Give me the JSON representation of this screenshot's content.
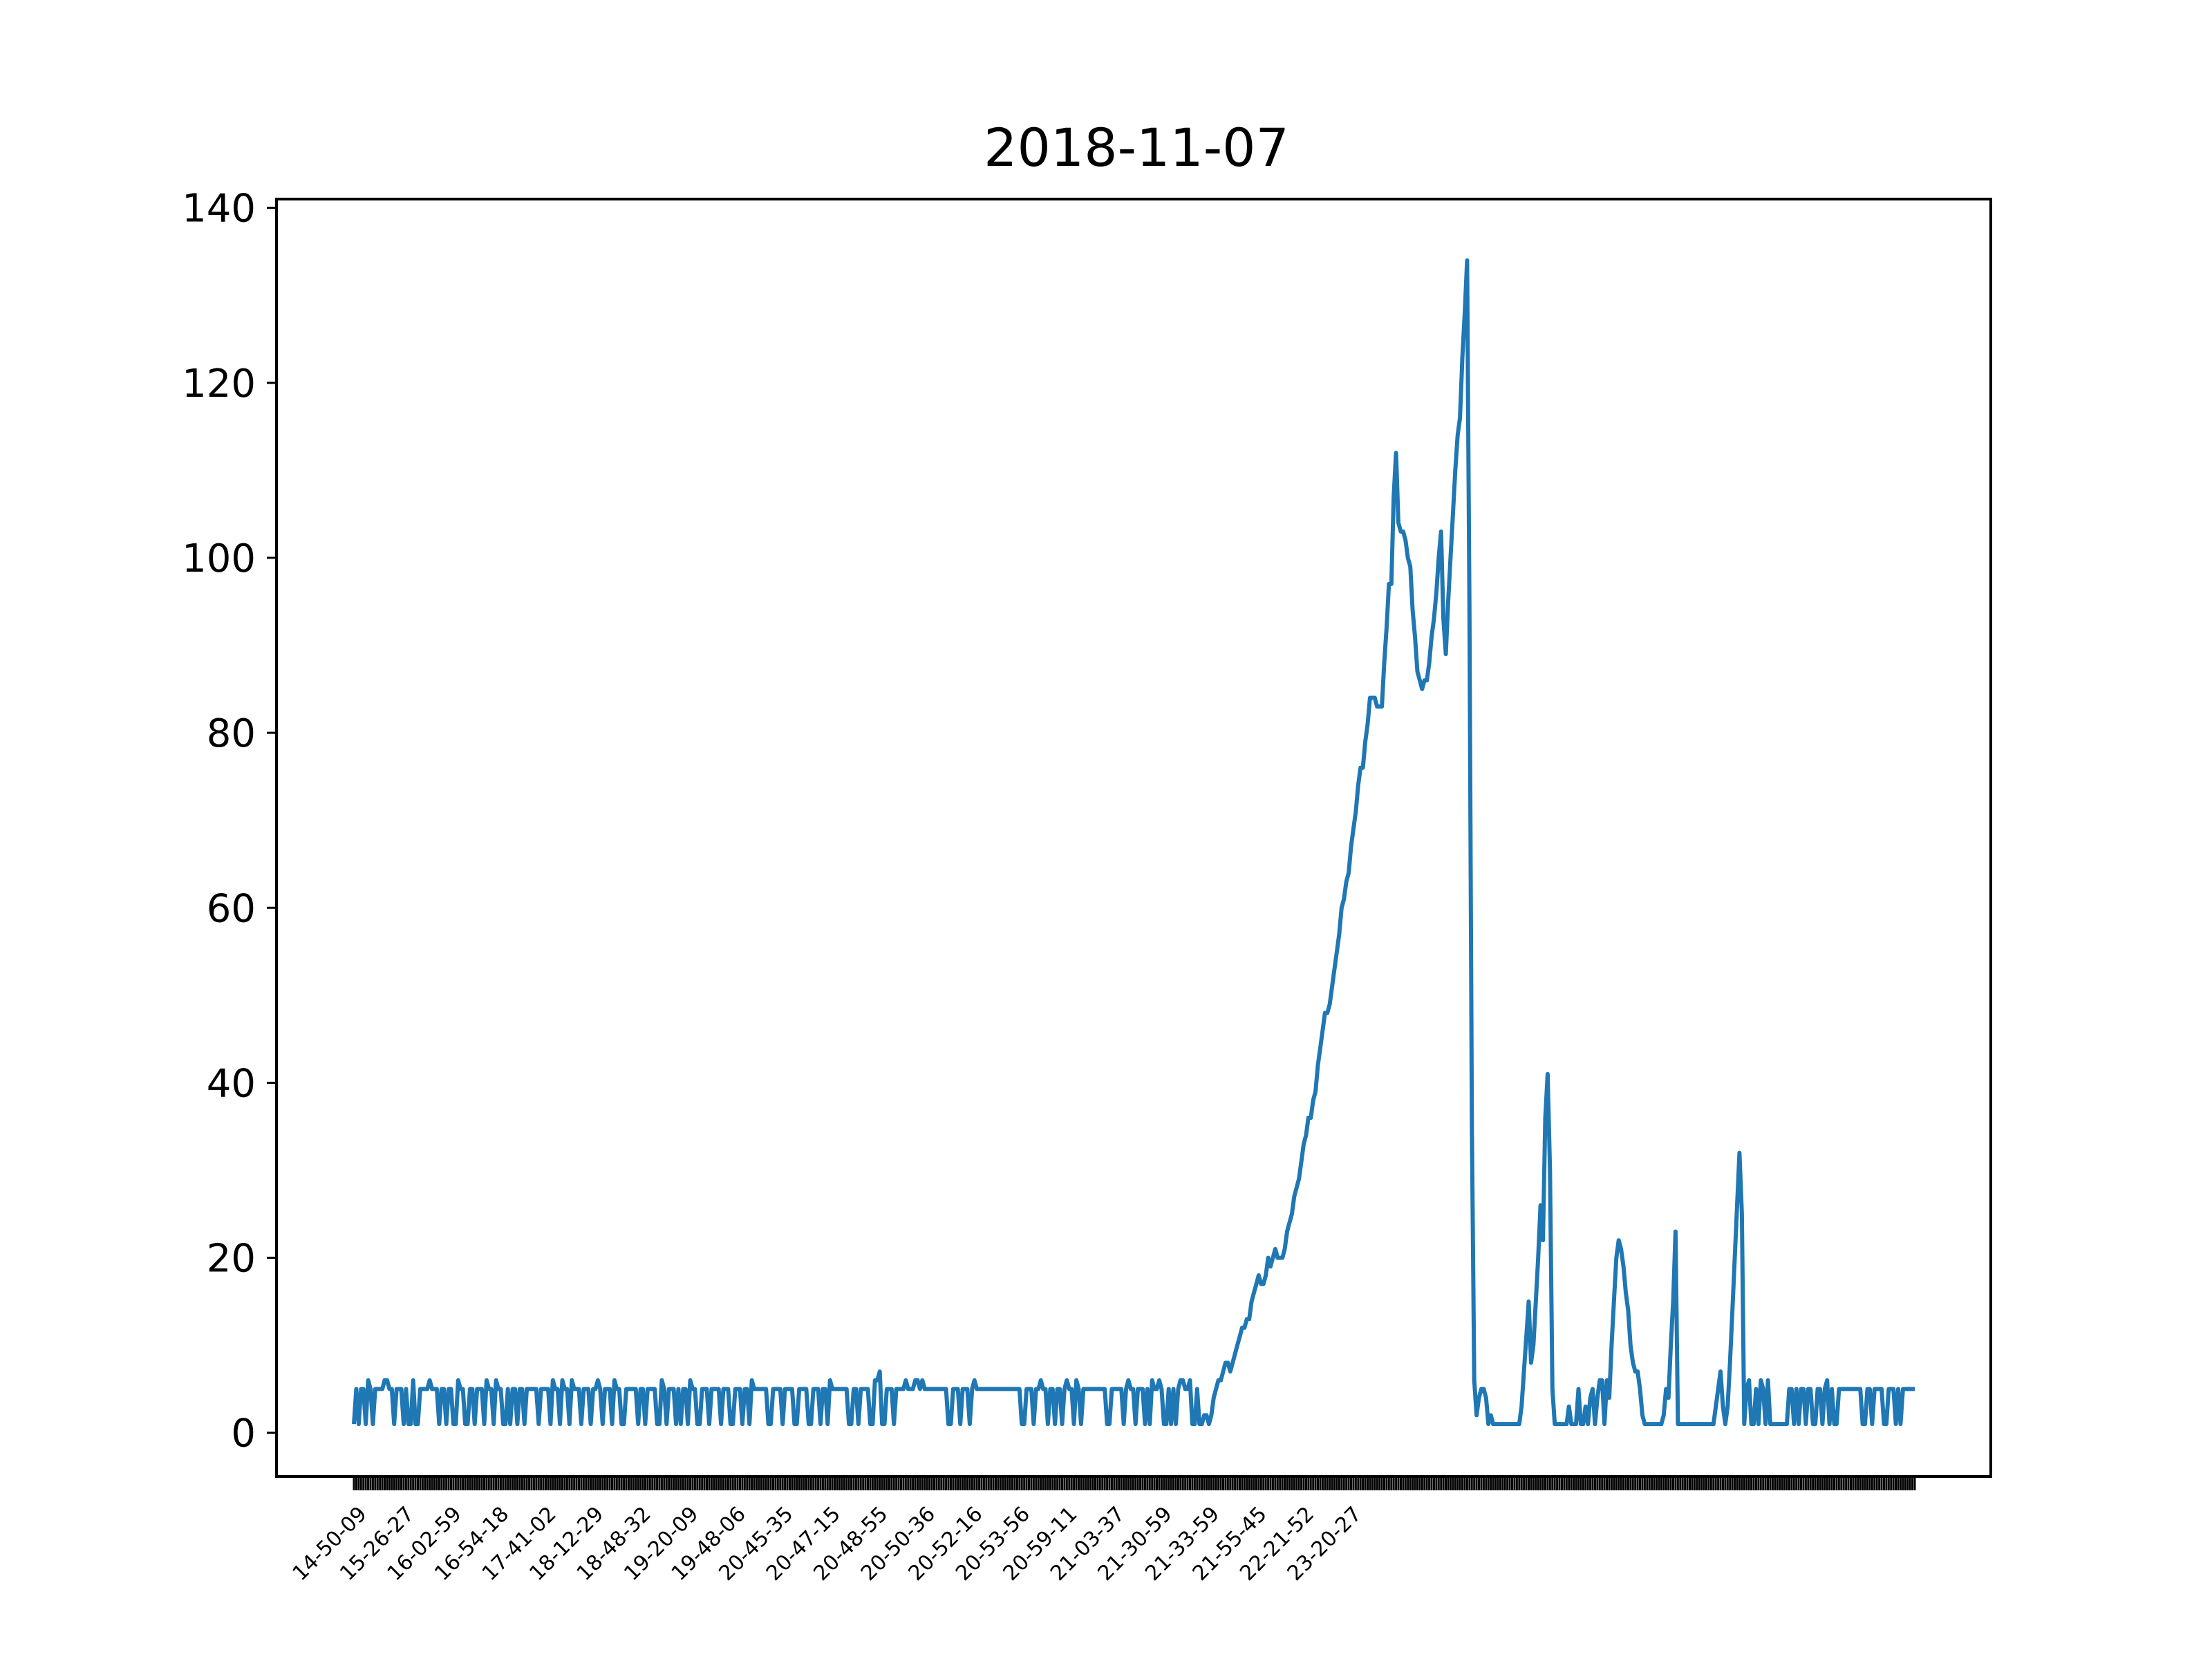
{
  "chart_data": {
    "type": "line",
    "title": "2018-11-07",
    "xlabel": "",
    "ylabel": "",
    "ylim": [
      -5,
      141
    ],
    "yticks": [
      0,
      20,
      40,
      60,
      80,
      100,
      120,
      140
    ],
    "x_tick_labels": [
      "14-50-09",
      "15-26-27",
      "16-02-59",
      "16-54-18",
      "17-41-02",
      "18-12-29",
      "18-48-32",
      "19-20-09",
      "19-48-06",
      "20-45-35",
      "20-47-15",
      "20-48-55",
      "20-50-36",
      "20-52-16",
      "20-53-56",
      "20-59-11",
      "21-03-37",
      "21-30-59",
      "21-33-59",
      "21-55-45",
      "22-21-52",
      "23-20-27"
    ],
    "x_tick_every": 20,
    "grid": false,
    "legend": "none",
    "series": [
      {
        "color": "#1f77b4",
        "values": [
          1,
          5,
          1,
          5,
          5,
          1,
          6,
          5,
          1,
          5,
          5,
          5,
          5,
          6,
          6,
          5,
          5,
          1,
          5,
          5,
          5,
          1,
          5,
          1,
          1,
          6,
          1,
          1,
          5,
          5,
          5,
          5,
          6,
          5,
          5,
          5,
          1,
          5,
          5,
          1,
          5,
          5,
          1,
          1,
          6,
          5,
          5,
          1,
          1,
          5,
          5,
          1,
          5,
          5,
          5,
          1,
          6,
          5,
          5,
          1,
          6,
          5,
          5,
          1,
          1,
          5,
          1,
          5,
          5,
          1,
          5,
          5,
          1,
          5,
          5,
          5,
          5,
          5,
          1,
          5,
          5,
          5,
          5,
          1,
          6,
          5,
          5,
          1,
          6,
          5,
          5,
          1,
          6,
          5,
          5,
          5,
          1,
          5,
          5,
          5,
          1,
          5,
          5,
          6,
          5,
          1,
          5,
          5,
          5,
          1,
          6,
          5,
          5,
          1,
          1,
          5,
          5,
          5,
          5,
          5,
          1,
          5,
          5,
          1,
          5,
          5,
          5,
          5,
          1,
          1,
          6,
          5,
          1,
          5,
          5,
          5,
          1,
          5,
          1,
          5,
          5,
          1,
          6,
          5,
          5,
          1,
          1,
          5,
          5,
          5,
          1,
          5,
          5,
          5,
          5,
          1,
          5,
          5,
          5,
          1,
          1,
          5,
          5,
          5,
          1,
          5,
          5,
          1,
          6,
          5,
          5,
          5,
          5,
          5,
          5,
          1,
          1,
          5,
          5,
          5,
          5,
          1,
          5,
          5,
          5,
          5,
          1,
          1,
          5,
          5,
          5,
          5,
          1,
          1,
          5,
          5,
          5,
          1,
          5,
          5,
          1,
          6,
          5,
          5,
          5,
          5,
          5,
          5,
          5,
          1,
          1,
          5,
          5,
          1,
          5,
          5,
          5,
          5,
          1,
          1,
          6,
          6,
          7,
          1,
          1,
          5,
          5,
          5,
          1,
          5,
          5,
          5,
          5,
          6,
          5,
          5,
          5,
          6,
          6,
          5,
          6,
          5,
          5,
          5,
          5,
          5,
          5,
          5,
          5,
          5,
          5,
          1,
          1,
          5,
          5,
          5,
          1,
          5,
          5,
          5,
          1,
          5,
          6,
          5,
          5,
          5,
          5,
          5,
          5,
          5,
          5,
          5,
          5,
          5,
          5,
          5,
          5,
          5,
          5,
          5,
          5,
          5,
          1,
          1,
          5,
          5,
          5,
          1,
          5,
          5,
          6,
          5,
          5,
          1,
          5,
          5,
          1,
          5,
          5,
          1,
          5,
          6,
          5,
          5,
          1,
          6,
          5,
          1,
          5,
          5,
          5,
          5,
          5,
          5,
          5,
          5,
          5,
          5,
          1,
          1,
          5,
          5,
          5,
          5,
          5,
          1,
          5,
          6,
          5,
          5,
          1,
          5,
          5,
          5,
          1,
          5,
          1,
          6,
          5,
          5,
          6,
          5,
          1,
          1,
          5,
          1,
          5,
          1,
          5,
          6,
          6,
          5,
          5,
          6,
          1,
          1,
          5,
          1,
          1,
          2,
          2,
          1,
          2,
          4,
          5,
          6,
          6,
          7,
          8,
          8,
          7,
          8,
          9,
          10,
          11,
          12,
          12,
          13,
          13,
          15,
          16,
          17,
          18,
          17,
          17,
          18,
          20,
          19,
          20,
          21,
          20,
          20,
          20,
          21,
          23,
          24,
          25,
          27,
          28,
          29,
          31,
          33,
          34,
          36,
          36,
          38,
          39,
          42,
          44,
          46,
          48,
          48,
          49,
          51,
          53,
          55,
          57,
          60,
          61,
          63,
          64,
          67,
          69,
          71,
          74,
          76,
          76,
          79,
          81,
          84,
          84,
          84,
          83,
          83,
          83,
          88,
          92,
          97,
          97,
          107,
          112,
          104,
          103,
          103,
          102,
          100,
          99,
          94,
          91,
          87,
          86,
          85,
          86,
          86,
          88,
          91,
          93,
          96,
          100,
          103,
          93,
          89,
          95,
          100,
          105,
          110,
          114,
          116,
          123,
          128,
          134,
          94,
          35,
          6,
          2,
          4,
          5,
          5,
          4,
          1,
          2,
          1,
          1,
          1,
          1,
          1,
          1,
          1,
          1,
          1,
          1,
          1,
          1,
          3,
          7,
          11,
          15,
          8,
          10,
          15,
          20,
          26,
          22,
          36,
          41,
          30,
          5,
          1,
          1,
          1,
          1,
          1,
          1,
          3,
          1,
          1,
          1,
          5,
          1,
          1,
          3,
          1,
          4,
          5,
          1,
          4,
          6,
          6,
          1,
          6,
          4,
          10,
          15,
          20,
          22,
          21,
          19,
          16,
          14,
          10,
          8,
          7,
          7,
          5,
          2,
          1,
          1,
          1,
          1,
          1,
          1,
          1,
          1,
          2,
          5,
          4,
          10,
          15,
          23,
          1,
          1,
          1,
          1,
          1,
          1,
          1,
          1,
          1,
          1,
          1,
          1,
          1,
          1,
          1,
          1,
          3,
          5,
          7,
          3,
          1,
          3,
          8,
          14,
          20,
          26,
          32,
          25,
          1,
          5,
          6,
          1,
          1,
          5,
          1,
          6,
          5,
          1,
          6,
          1,
          1,
          1,
          1,
          1,
          1,
          1,
          1,
          5,
          5,
          1,
          5,
          1,
          5,
          5,
          1,
          5,
          5,
          1,
          1,
          5,
          5,
          1,
          5,
          6,
          1,
          5,
          1,
          1,
          5,
          5,
          5,
          5,
          5,
          5,
          5,
          5,
          5,
          5,
          1,
          1,
          5,
          5,
          1,
          5,
          5,
          5,
          5,
          1,
          1,
          5,
          5,
          5,
          1,
          5,
          1,
          5,
          5,
          5,
          5,
          5,
          5
        ]
      }
    ]
  }
}
